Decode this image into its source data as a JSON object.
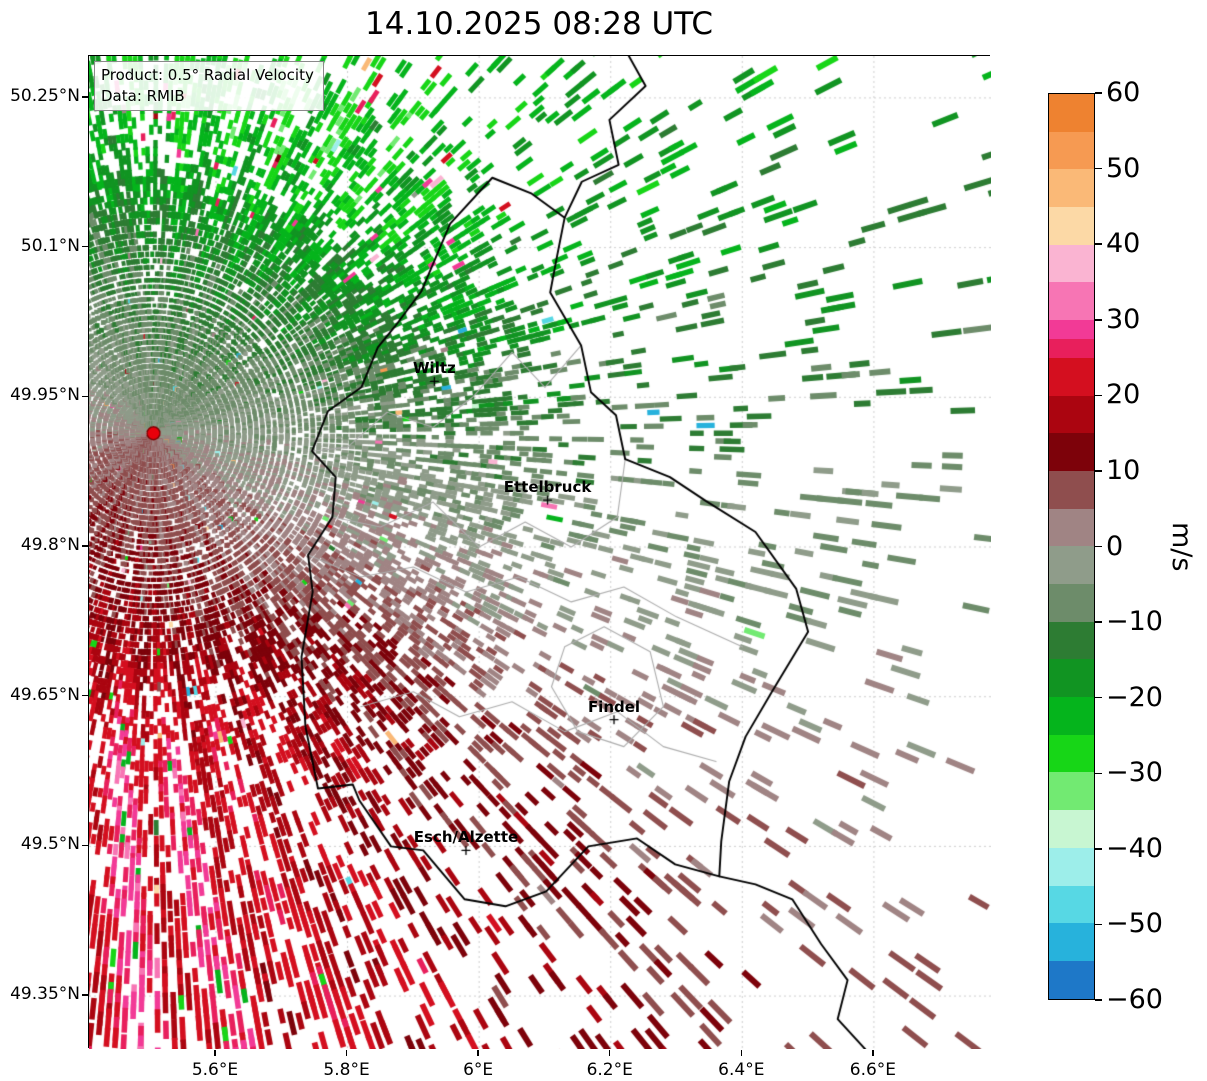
{
  "title": "14.10.2025 08:28 UTC",
  "info_box": {
    "product": "Product: 0.5° Radial Velocity",
    "data": "Data: RMIB"
  },
  "axes": {
    "extent": {
      "lon_min": 5.407,
      "lon_max": 6.778,
      "lat_min": 49.297,
      "lat_max": 50.292
    },
    "x_ticks": [
      {
        "label": "5.6°E",
        "lon": 5.6
      },
      {
        "label": "5.8°E",
        "lon": 5.8
      },
      {
        "label": "6°E",
        "lon": 6.0
      },
      {
        "label": "6.2°E",
        "lon": 6.2
      },
      {
        "label": "6.4°E",
        "lon": 6.4
      },
      {
        "label": "6.6°E",
        "lon": 6.6
      }
    ],
    "y_ticks": [
      {
        "label": "50.25°N",
        "lat": 50.25
      },
      {
        "label": "50.1°N",
        "lat": 50.1
      },
      {
        "label": "49.95°N",
        "lat": 49.95
      },
      {
        "label": "49.8°N",
        "lat": 49.8
      },
      {
        "label": "49.65°N",
        "lat": 49.65
      },
      {
        "label": "49.5°N",
        "lat": 49.5
      },
      {
        "label": "49.35°N",
        "lat": 49.35
      }
    ]
  },
  "cities": [
    {
      "name": "Wiltz",
      "lon": 5.932,
      "lat": 49.966
    },
    {
      "name": "Ettelbruck",
      "lon": 6.104,
      "lat": 49.847
    },
    {
      "name": "Findel",
      "lon": 6.205,
      "lat": 49.627
    },
    {
      "name": "Esch/Alzette",
      "lon": 5.98,
      "lat": 49.496
    }
  ],
  "radar_site": {
    "lon": 5.505,
    "lat": 49.914,
    "marker_color": "#e8000b",
    "marker_edge": "#7a0000"
  },
  "colorbar": {
    "label": "m/s",
    "v_min": -60,
    "v_max": 60,
    "tick_values": [
      60,
      50,
      40,
      30,
      20,
      10,
      0,
      -10,
      -20,
      -30,
      -40,
      -50,
      -60
    ],
    "tick_labels": [
      "60",
      "50",
      "40",
      "30",
      "20",
      "10",
      "0",
      "−10",
      "−20",
      "−30",
      "−40",
      "−50",
      "−60"
    ],
    "stops": [
      {
        "lo": 55,
        "hi": 60,
        "color": "#ee8230"
      },
      {
        "lo": 50,
        "hi": 55,
        "color": "#f69a52"
      },
      {
        "lo": 45,
        "hi": 50,
        "color": "#fab977"
      },
      {
        "lo": 40,
        "hi": 45,
        "color": "#fcd9a6"
      },
      {
        "lo": 35,
        "hi": 40,
        "color": "#fab4d2"
      },
      {
        "lo": 30,
        "hi": 35,
        "color": "#f775b4"
      },
      {
        "lo": 27.5,
        "hi": 30,
        "color": "#f23a96"
      },
      {
        "lo": 25,
        "hi": 27.5,
        "color": "#e81f5c"
      },
      {
        "lo": 20,
        "hi": 25,
        "color": "#d40f1f"
      },
      {
        "lo": 15,
        "hi": 20,
        "color": "#ab0510"
      },
      {
        "lo": 10,
        "hi": 15,
        "color": "#7d020a"
      },
      {
        "lo": 5,
        "hi": 10,
        "color": "#8f4e4e"
      },
      {
        "lo": 0,
        "hi": 5,
        "color": "#a08484"
      },
      {
        "lo": -5,
        "hi": 0,
        "color": "#8f9c8a"
      },
      {
        "lo": -10,
        "hi": -5,
        "color": "#6d8c6a"
      },
      {
        "lo": -15,
        "hi": -10,
        "color": "#2d7c33"
      },
      {
        "lo": -20,
        "hi": -15,
        "color": "#119422"
      },
      {
        "lo": -25,
        "hi": -20,
        "color": "#05b41c"
      },
      {
        "lo": -30,
        "hi": -25,
        "color": "#17d617"
      },
      {
        "lo": -35,
        "hi": -30,
        "color": "#72ea72"
      },
      {
        "lo": -40,
        "hi": -35,
        "color": "#c8f6d2"
      },
      {
        "lo": -45,
        "hi": -40,
        "color": "#9deeea"
      },
      {
        "lo": -50,
        "hi": -45,
        "color": "#57d8e4"
      },
      {
        "lo": -55,
        "hi": -50,
        "color": "#27b2dc"
      },
      {
        "lo": -60,
        "hi": -55,
        "color": "#1e78c8"
      }
    ]
  },
  "borders": {
    "luxembourg": [
      [
        6.02,
        50.17
      ],
      [
        6.08,
        50.154
      ],
      [
        6.13,
        50.13
      ],
      [
        6.118,
        50.09
      ],
      [
        6.108,
        50.055
      ],
      [
        6.155,
        50.002
      ],
      [
        6.17,
        49.955
      ],
      [
        6.208,
        49.932
      ],
      [
        6.222,
        49.888
      ],
      [
        6.29,
        49.87
      ],
      [
        6.345,
        49.846
      ],
      [
        6.42,
        49.815
      ],
      [
        6.482,
        49.758
      ],
      [
        6.5,
        49.715
      ],
      [
        6.445,
        49.655
      ],
      [
        6.405,
        49.61
      ],
      [
        6.38,
        49.565
      ],
      [
        6.368,
        49.505
      ],
      [
        6.365,
        49.47
      ],
      [
        6.298,
        49.482
      ],
      [
        6.24,
        49.508
      ],
      [
        6.166,
        49.5
      ],
      [
        6.102,
        49.455
      ],
      [
        6.04,
        49.44
      ],
      [
        5.978,
        49.447
      ],
      [
        5.915,
        49.496
      ],
      [
        5.866,
        49.5
      ],
      [
        5.818,
        49.546
      ],
      [
        5.808,
        49.562
      ],
      [
        5.755,
        49.558
      ],
      [
        5.736,
        49.62
      ],
      [
        5.73,
        49.69
      ],
      [
        5.747,
        49.755
      ],
      [
        5.74,
        49.792
      ],
      [
        5.777,
        49.83
      ],
      [
        5.782,
        49.87
      ],
      [
        5.746,
        49.896
      ],
      [
        5.77,
        49.936
      ],
      [
        5.821,
        49.96
      ],
      [
        5.846,
        50.0
      ],
      [
        5.872,
        50.021
      ],
      [
        5.912,
        50.056
      ],
      [
        5.956,
        50.124
      ],
      [
        6.02,
        50.17
      ]
    ],
    "belgium_germany": [
      [
        6.225,
        50.295
      ],
      [
        6.253,
        50.262
      ],
      [
        6.198,
        50.228
      ],
      [
        6.212,
        50.183
      ],
      [
        6.156,
        50.166
      ],
      [
        6.13,
        50.13
      ]
    ],
    "france_germany": [
      [
        6.365,
        49.47
      ],
      [
        6.42,
        49.462
      ],
      [
        6.476,
        49.447
      ],
      [
        6.52,
        49.402
      ],
      [
        6.56,
        49.366
      ],
      [
        6.545,
        49.327
      ],
      [
        6.588,
        49.296
      ]
    ],
    "internal": [
      [
        [
          5.746,
          49.896
        ],
        [
          5.8,
          49.9
        ],
        [
          5.86,
          49.935
        ],
        [
          5.93,
          49.92
        ],
        [
          5.99,
          49.95
        ],
        [
          6.05,
          49.995
        ],
        [
          6.1,
          49.96
        ],
        [
          6.155,
          50.002
        ]
      ],
      [
        [
          5.777,
          49.83
        ],
        [
          5.85,
          49.82
        ],
        [
          5.93,
          49.845
        ],
        [
          6.0,
          49.8
        ],
        [
          6.07,
          49.825
        ],
        [
          6.14,
          49.8
        ],
        [
          6.21,
          49.83
        ],
        [
          6.222,
          49.888
        ]
      ],
      [
        [
          5.74,
          49.792
        ],
        [
          5.82,
          49.77
        ],
        [
          5.9,
          49.78
        ],
        [
          5.98,
          49.755
        ],
        [
          6.06,
          49.77
        ],
        [
          6.14,
          49.745
        ],
        [
          6.22,
          49.76
        ],
        [
          6.3,
          49.73
        ],
        [
          6.4,
          49.7
        ]
      ],
      [
        [
          5.82,
          49.64
        ],
        [
          5.9,
          49.655
        ],
        [
          5.97,
          49.63
        ],
        [
          6.05,
          49.645
        ],
        [
          6.13,
          49.615
        ],
        [
          6.21,
          49.635
        ],
        [
          6.28,
          49.6
        ],
        [
          6.36,
          49.585
        ]
      ],
      [
        [
          6.13,
          49.7
        ],
        [
          6.19,
          49.72
        ],
        [
          6.26,
          49.695
        ],
        [
          6.28,
          49.64
        ],
        [
          6.22,
          49.6
        ],
        [
          6.15,
          49.615
        ],
        [
          6.11,
          49.66
        ],
        [
          6.13,
          49.7
        ]
      ]
    ]
  },
  "field": {
    "v_max": 26,
    "downwind_azimuth_deg": 112,
    "seed": 7
  }
}
